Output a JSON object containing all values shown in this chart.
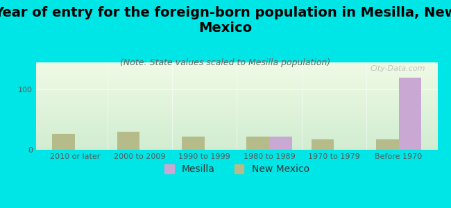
{
  "title": "Year of entry for the foreign-born population in Mesilla, New\nMexico",
  "subtitle": "(Note: State values scaled to Mesilla population)",
  "categories": [
    "2010 or later",
    "2000 to 2009",
    "1990 to 1999",
    "1980 to 1989",
    "1970 to 1979",
    "Before 1970"
  ],
  "mesilla_values": [
    0,
    0,
    0,
    22,
    0,
    120
  ],
  "nm_values": [
    27,
    30,
    22,
    22,
    17,
    17
  ],
  "mesilla_color": "#c9a8d4",
  "nm_color": "#b5bc8a",
  "bg_color": "#00e5e5",
  "plot_bg_top": "#e8f5e0",
  "plot_bg_bottom": "#d0ecd0",
  "ylabel_value": "100",
  "bar_width": 0.35,
  "ylim": [
    0,
    145
  ],
  "yticks": [
    0,
    100
  ],
  "watermark": "City-Data.com",
  "title_fontsize": 14,
  "subtitle_fontsize": 9,
  "axis_label_fontsize": 8,
  "legend_fontsize": 10
}
